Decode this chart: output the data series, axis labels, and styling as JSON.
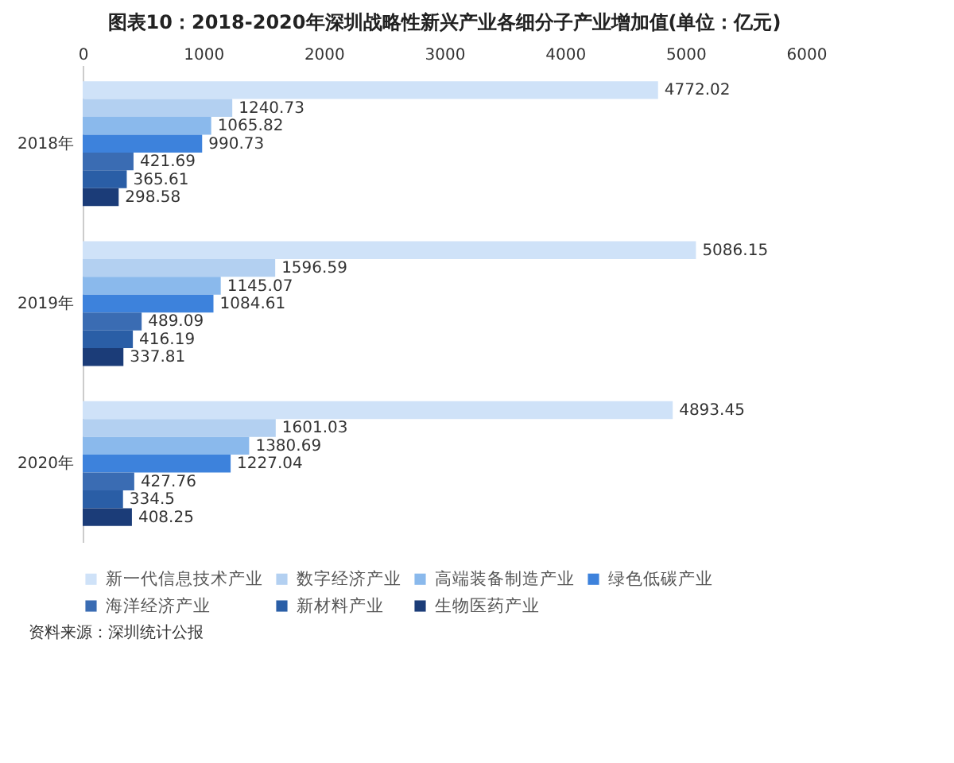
{
  "chart_data": {
    "type": "bar",
    "orientation": "horizontal",
    "title": "图表10：2018-2020年深圳战略性新兴产业各细分子产业增加值(单位：亿元)",
    "categories": [
      "2018年",
      "2019年",
      "2020年"
    ],
    "series": [
      {
        "name": "新一代信息技术产业",
        "color": "#cfe2f8",
        "values": [
          4772.02,
          5086.15,
          4893.45
        ]
      },
      {
        "name": "数字经济产业",
        "color": "#b3d0f1",
        "values": [
          1240.73,
          1596.59,
          1601.03
        ]
      },
      {
        "name": "高端装备制造产业",
        "color": "#8ab9ec",
        "values": [
          1065.82,
          1145.07,
          1380.69
        ]
      },
      {
        "name": "绿色低碳产业",
        "color": "#3d82dc",
        "values": [
          990.73,
          1084.61,
          1227.04
        ]
      },
      {
        "name": "海洋经济产业",
        "color": "#3a6cb3",
        "values": [
          421.69,
          489.09,
          427.76
        ]
      },
      {
        "name": "新材料产业",
        "color": "#2a5ea6",
        "values": [
          365.61,
          416.19,
          334.5
        ]
      },
      {
        "name": "生物医药产业",
        "color": "#1b3c78",
        "values": [
          298.58,
          337.81,
          408.25
        ]
      }
    ],
    "xlim": [
      0,
      6000
    ],
    "xticks": [
      0,
      1000,
      2000,
      3000,
      4000,
      5000,
      6000
    ],
    "data_labels": true,
    "legend": "bottom",
    "annotations": [
      "资料来源：深圳统计公报"
    ]
  }
}
